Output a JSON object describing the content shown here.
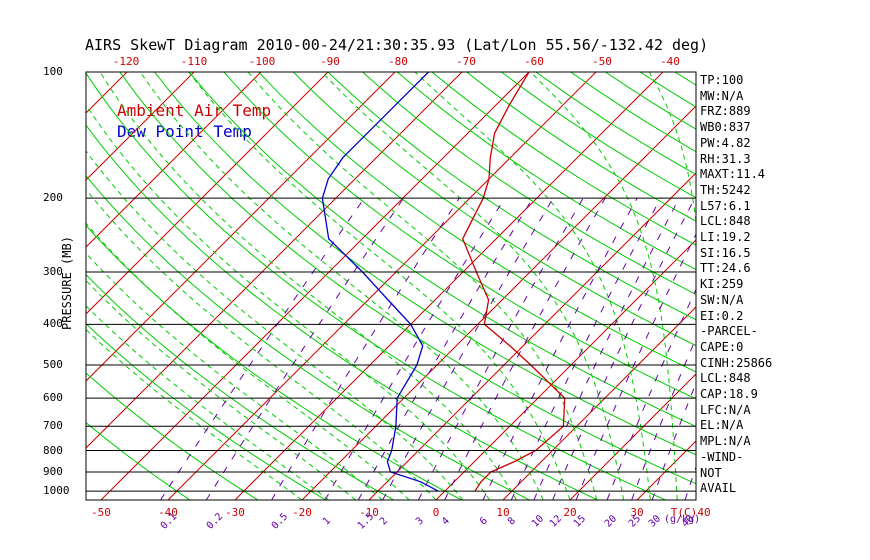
{
  "title": "AIRS SkewT Diagram 2010-00-24/21:30:35.93 (Lat/Lon 55.56/-132.42 deg)",
  "legend": {
    "air": "Ambient Air Temp",
    "dew": "Dew Point Temp"
  },
  "colors": {
    "air": "#cc0000",
    "dew": "#0000cc",
    "isotherm": "#cc0000",
    "dry_adiabat": "#00cc00",
    "moist_adiabat": "#00cc00",
    "mixing_ratio": "#6600aa",
    "isobar": "#000000",
    "tick_top": "#cc0000",
    "tick_bottom": "#cc0000",
    "mr_label": "#6600aa"
  },
  "chart_data": {
    "type": "line",
    "ylabel": "PRESSURE (MB)",
    "y_log": true,
    "ylim": [
      1000,
      100
    ],
    "pressure_ticks": [
      100,
      200,
      300,
      400,
      500,
      600,
      700,
      800,
      900,
      1000
    ],
    "temp_ticks_bottom": [
      -50,
      -40,
      -30,
      -20,
      -10,
      0,
      10,
      20,
      30,
      40
    ],
    "temp_ticks_top": [
      -120,
      -110,
      -100,
      -90,
      -80,
      -70,
      -60,
      -50,
      -40
    ],
    "temp_unit": "T(C)",
    "mixing_ratio_ticks": [
      "0.1",
      "0.2",
      "0.5",
      "1",
      "1.5",
      "2",
      "3",
      "4",
      "6",
      "8",
      "10",
      "12",
      "15",
      "20",
      "25",
      "30",
      "40"
    ],
    "mixing_ratio_unit": "(g/kg)",
    "series": [
      {
        "name": "Ambient Air Temp",
        "points": [
          [
            1000,
            4.5
          ],
          [
            950,
            4
          ],
          [
            900,
            4
          ],
          [
            850,
            6
          ],
          [
            800,
            7.5
          ],
          [
            700,
            8
          ],
          [
            600,
            4
          ],
          [
            500,
            -6
          ],
          [
            450,
            -12
          ],
          [
            400,
            -19
          ],
          [
            350,
            -22
          ],
          [
            300,
            -28
          ],
          [
            250,
            -35
          ],
          [
            200,
            -38
          ],
          [
            180,
            -40
          ],
          [
            160,
            -43
          ],
          [
            140,
            -46
          ],
          [
            120,
            -48
          ],
          [
            100,
            -50
          ]
        ]
      },
      {
        "name": "Dew Point Temp",
        "points": [
          [
            1000,
            -1
          ],
          [
            950,
            -5
          ],
          [
            900,
            -11
          ],
          [
            850,
            -13
          ],
          [
            800,
            -14
          ],
          [
            700,
            -17
          ],
          [
            600,
            -21
          ],
          [
            500,
            -23
          ],
          [
            450,
            -25
          ],
          [
            400,
            -30
          ],
          [
            350,
            -37
          ],
          [
            300,
            -45
          ],
          [
            250,
            -55
          ],
          [
            200,
            -62
          ],
          [
            180,
            -64
          ],
          [
            160,
            -65
          ],
          [
            140,
            -65
          ],
          [
            120,
            -65
          ],
          [
            100,
            -65
          ]
        ]
      }
    ]
  },
  "indices": [
    "TP:100",
    "MW:N/A",
    "FRZ:889",
    "WB0:837",
    "PW:4.82",
    "RH:31.3",
    "MAXT:11.4",
    "TH:5242",
    "L57:6.1",
    "LCL:848",
    "LI:19.2",
    "SI:16.5",
    "TT:24.6",
    "KI:259",
    "SW:N/A",
    "EI:0.2",
    "-PARCEL-",
    "CAPE:0",
    "CINH:25866",
    "LCL:848",
    "CAP:18.9",
    "LFC:N/A",
    "EL:N/A",
    "MPL:N/A",
    "-WIND-",
    "NOT",
    "AVAIL"
  ]
}
